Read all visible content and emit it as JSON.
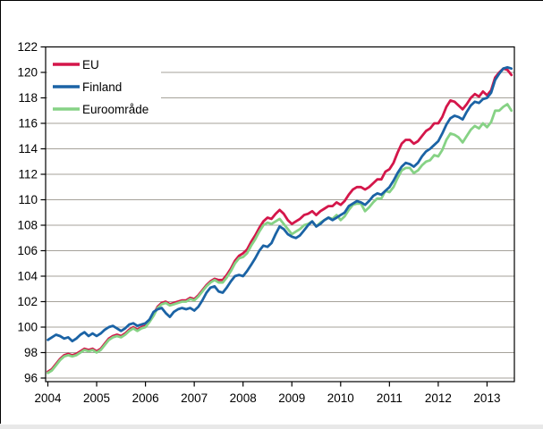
{
  "chart_data": {
    "type": "line",
    "title": "",
    "xlabel": "",
    "ylabel": "",
    "x_monthly_start": "2004-01",
    "x_monthly_end": "2013-07",
    "x_tick_labels": [
      "2004",
      "2005",
      "2006",
      "2007",
      "2008",
      "2009",
      "2010",
      "2011",
      "2012",
      "2013"
    ],
    "y_tick_labels": [
      "96",
      "98",
      "100",
      "102",
      "104",
      "106",
      "108",
      "110",
      "112",
      "114",
      "116",
      "118",
      "120",
      "122"
    ],
    "y_ticks": [
      96,
      98,
      100,
      102,
      104,
      106,
      108,
      110,
      112,
      114,
      116,
      118,
      120,
      122
    ],
    "ylim": [
      95.6,
      122
    ],
    "grid": "horizontal",
    "legend_position": "top-left-inside",
    "colors": {
      "axis": "#000000",
      "gridline": "#a6a29a",
      "background": "#ffffff",
      "eu": "#d4164a",
      "finland": "#1b63a5",
      "euroomrade": "#86d285"
    },
    "series": [
      {
        "name": "EU",
        "color": "#d4164a",
        "values": [
          96.5,
          96.7,
          97.1,
          97.5,
          97.8,
          97.9,
          97.8,
          97.9,
          98.1,
          98.3,
          98.2,
          98.3,
          98.1,
          98.3,
          98.7,
          99.1,
          99.3,
          99.4,
          99.3,
          99.5,
          99.8,
          100.0,
          99.8,
          100.0,
          100.1,
          100.5,
          101.0,
          101.6,
          101.9,
          102.0,
          101.8,
          101.9,
          102.0,
          102.1,
          102.1,
          102.3,
          102.2,
          102.5,
          102.9,
          103.3,
          103.6,
          103.8,
          103.7,
          103.7,
          104.1,
          104.6,
          105.2,
          105.6,
          105.8,
          106.1,
          106.7,
          107.2,
          107.8,
          108.3,
          108.6,
          108.5,
          108.9,
          109.2,
          108.9,
          108.4,
          108.1,
          108.3,
          108.5,
          108.8,
          108.9,
          109.1,
          108.8,
          109.1,
          109.3,
          109.5,
          109.5,
          109.8,
          109.6,
          109.9,
          110.4,
          110.8,
          111.0,
          111.0,
          110.8,
          111.0,
          111.3,
          111.6,
          111.6,
          112.2,
          112.4,
          112.9,
          113.7,
          114.4,
          114.7,
          114.7,
          114.4,
          114.6,
          115.0,
          115.4,
          115.6,
          116.0,
          116.0,
          116.5,
          117.3,
          117.8,
          117.7,
          117.4,
          117.1,
          117.5,
          118.0,
          118.3,
          118.1,
          118.5,
          118.2,
          118.6,
          119.6,
          120.0,
          120.3,
          120.2,
          119.8
        ]
      },
      {
        "name": "Finland",
        "color": "#1b63a5",
        "values": [
          99.0,
          99.2,
          99.4,
          99.3,
          99.1,
          99.2,
          98.9,
          99.1,
          99.4,
          99.6,
          99.3,
          99.5,
          99.3,
          99.5,
          99.8,
          100.0,
          100.1,
          99.9,
          99.7,
          99.9,
          100.2,
          100.3,
          100.1,
          100.2,
          100.3,
          100.6,
          101.2,
          101.4,
          101.5,
          101.1,
          100.8,
          101.2,
          101.4,
          101.5,
          101.4,
          101.5,
          101.3,
          101.6,
          102.1,
          102.7,
          103.1,
          103.2,
          102.8,
          102.7,
          103.1,
          103.6,
          104.0,
          104.1,
          104.0,
          104.4,
          104.9,
          105.4,
          106.0,
          106.4,
          106.3,
          106.6,
          107.3,
          107.9,
          107.7,
          107.3,
          107.1,
          107.0,
          107.2,
          107.6,
          108.0,
          108.3,
          107.9,
          108.1,
          108.4,
          108.6,
          108.4,
          108.6,
          108.8,
          109.0,
          109.5,
          109.7,
          109.9,
          109.8,
          109.6,
          109.9,
          110.3,
          110.5,
          110.4,
          110.7,
          111.0,
          111.5,
          112.1,
          112.6,
          112.9,
          112.8,
          112.6,
          112.9,
          113.4,
          113.8,
          114.0,
          114.3,
          114.6,
          115.2,
          115.9,
          116.4,
          116.6,
          116.5,
          116.3,
          116.9,
          117.4,
          117.7,
          117.6,
          117.9,
          118.0,
          118.4,
          119.4,
          119.9,
          120.3,
          120.4,
          120.3
        ]
      },
      {
        "name": "Euroområde",
        "color": "#86d285",
        "values": [
          96.4,
          96.6,
          97.0,
          97.4,
          97.7,
          97.8,
          97.7,
          97.8,
          98.0,
          98.2,
          98.1,
          98.2,
          98.0,
          98.2,
          98.6,
          99.0,
          99.2,
          99.3,
          99.2,
          99.4,
          99.7,
          99.9,
          99.7,
          99.9,
          100.0,
          100.4,
          100.9,
          101.5,
          101.8,
          101.9,
          101.7,
          101.8,
          101.9,
          102.0,
          102.0,
          102.2,
          102.1,
          102.4,
          102.8,
          103.2,
          103.5,
          103.7,
          103.5,
          103.5,
          103.9,
          104.4,
          105.0,
          105.4,
          105.5,
          105.8,
          106.4,
          106.9,
          107.5,
          108.0,
          108.2,
          108.1,
          108.3,
          108.5,
          108.1,
          107.7,
          107.3,
          107.5,
          107.7,
          108.0,
          108.1,
          108.3,
          107.9,
          108.2,
          108.4,
          108.6,
          108.5,
          108.8,
          108.4,
          108.7,
          109.2,
          109.6,
          109.7,
          109.7,
          109.1,
          109.4,
          109.8,
          110.1,
          110.1,
          110.7,
          110.6,
          111.0,
          111.7,
          112.3,
          112.5,
          112.5,
          112.1,
          112.3,
          112.7,
          113.0,
          113.1,
          113.5,
          113.4,
          113.9,
          114.7,
          115.2,
          115.1,
          114.9,
          114.5,
          115.0,
          115.5,
          115.8,
          115.6,
          116.0,
          115.7,
          116.1,
          117.0,
          117.0,
          117.3,
          117.5,
          117.0
        ]
      }
    ],
    "legend": {
      "items": [
        {
          "label": "EU"
        },
        {
          "label": "Finland"
        },
        {
          "label": "Euroområde"
        }
      ]
    }
  }
}
